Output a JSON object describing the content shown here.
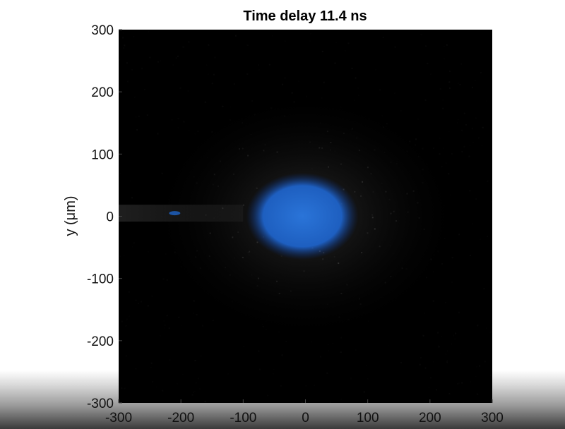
{
  "chart_data": {
    "type": "heatmap",
    "title": "Time delay 11.4 ns",
    "xlabel": "",
    "ylabel": "y (μm)",
    "xlim": [
      -300,
      300
    ],
    "ylim": [
      -300,
      300
    ],
    "xticks": [
      "-300",
      "-200",
      "-100",
      "0",
      "100",
      "200",
      "300"
    ],
    "yticks": [
      "300",
      "200",
      "100",
      "0",
      "-100",
      "-200",
      "-300"
    ],
    "grid": false,
    "colors": {
      "background": "#000000",
      "halo": "#1e64c8",
      "core": "#ffffff"
    },
    "features": [
      {
        "kind": "bright-core",
        "x": 0,
        "y": 0,
        "radius": 40
      },
      {
        "kind": "blue-halo",
        "x": -5,
        "y": 0,
        "radius_x": 90,
        "radius_y": 70
      },
      {
        "kind": "faint-streak",
        "x_from": -300,
        "x_to": -100,
        "y": 5
      }
    ]
  }
}
